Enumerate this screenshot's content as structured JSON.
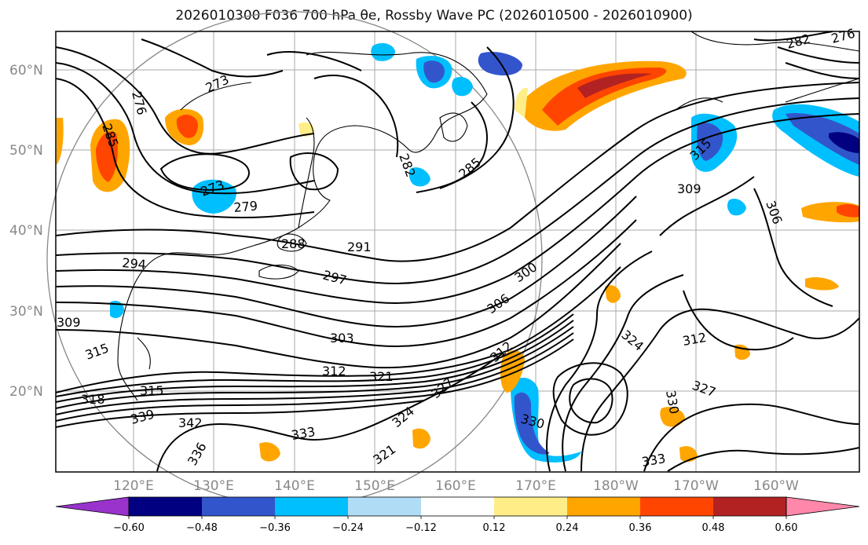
{
  "title": "2026010300 F036 700 hPa θe, Rossby Wave PC (2026010500 - 2026010900)",
  "lat_labels": [
    "60°N",
    "50°N",
    "40°N",
    "30°N",
    "20°N"
  ],
  "lon_labels": [
    "120°E",
    "130°E",
    "140°E",
    "150°E",
    "160°E",
    "170°E",
    "180°W",
    "170°W",
    "160°W"
  ],
  "contour_labels": [
    "273",
    "276",
    "285",
    "273",
    "279",
    "288",
    "291",
    "294",
    "297",
    "282",
    "285",
    "300",
    "306",
    "309",
    "312",
    "315",
    "303",
    "312",
    "321",
    "315",
    "318",
    "339",
    "342",
    "333",
    "324",
    "327",
    "330",
    "333",
    "336",
    "321",
    "312",
    "324",
    "327",
    "330",
    "306",
    "315",
    "309",
    "282",
    "276"
  ],
  "colorbar": {
    "ticks": [
      "−0.60",
      "−0.48",
      "−0.36",
      "−0.24",
      "−0.12",
      "0.12",
      "0.24",
      "0.36",
      "0.48",
      "0.60"
    ],
    "colors": [
      "#9933cc",
      "#000080",
      "#3355cc",
      "#00bfff",
      "#b0dcf5",
      "#ffffff",
      "#ffee88",
      "#ffa500",
      "#ff4500",
      "#b22222",
      "#ff88aa"
    ]
  }
}
